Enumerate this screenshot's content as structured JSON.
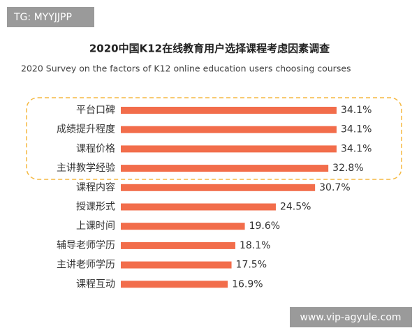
{
  "chart_data": {
    "type": "bar",
    "orientation": "horizontal",
    "title": "2020中国K12在线教育用户选择课程考虑因素调查",
    "subtitle": "2020 Survey on the factors of K12 online education users choosing courses",
    "categories": [
      "平台口碑",
      "成绩提升程度",
      "课程价格",
      "主讲教学经验",
      "课程内容",
      "授课形式",
      "上课时间",
      "辅导老师学历",
      "主讲老师学历",
      "课程互动"
    ],
    "values": [
      34.1,
      34.1,
      34.1,
      32.8,
      30.7,
      24.5,
      19.6,
      18.1,
      17.5,
      16.9
    ],
    "value_labels": [
      "34.1%",
      "34.1%",
      "34.1%",
      "32.8%",
      "30.7%",
      "24.5%",
      "19.6%",
      "18.1%",
      "17.5%",
      "16.9%"
    ],
    "color": "#f26d4b"
  },
  "watermarks": [
    "TG: MYYJJPP",
    "www.vip-agyule.com"
  ]
}
